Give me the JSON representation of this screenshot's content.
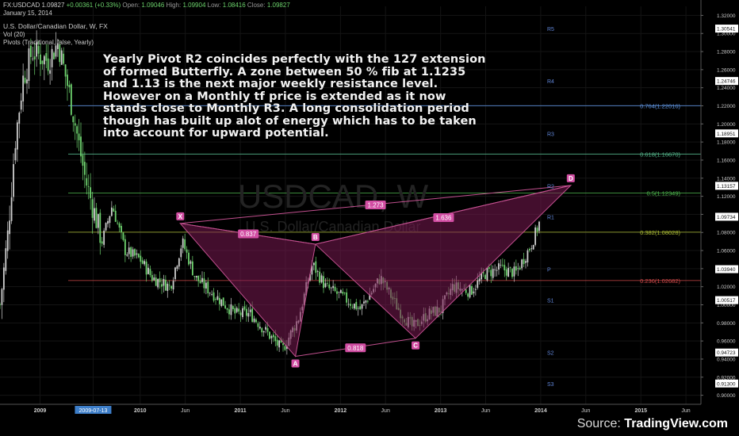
{
  "header": {
    "line1": {
      "symbol": "FX:USDCAD",
      "last": "1.09827",
      "change": "+0.00361 (+0.33%)",
      "open_label": "Open:",
      "open": "1.09046",
      "high_label": "High:",
      "high": "1.09904",
      "low_label": "Low:",
      "low": "1.08416",
      "close_label": "Close:",
      "close": "1.09827"
    },
    "date": "January 15, 2014",
    "pair_name": "U.S. Dollar/Canadian Dollar, W, FX",
    "vol": "Vol (20)",
    "pivots": "Pivots (Traditional, false, Yearly)"
  },
  "annotation": "Yearly Pivot R2 coincides perfectly with the 127 extension of formed Butterfly. A zone between 50 % fib at 1.1235 and 1.13 is the next major weekly resistance level. However on a Monthly tf price is extended as it now stands close to Monthly R3. A long consolidation period though has built up alot of energy which has to be taken into account for upward potential.",
  "watermark": {
    "symbol": "USDCAD",
    "interval": "W",
    "name": "U.S. Dollar/Canadian Dollar"
  },
  "source": {
    "prefix": "Source: ",
    "brand": "TradingView.com"
  },
  "colors": {
    "background": "#000000",
    "candle_up": "#cfcfcf",
    "candle_down": "#6fd36f",
    "pattern_stroke": "#c2508f",
    "pattern_fill": "#7a1a52",
    "pivot_label": "#5f84d6",
    "fib_label": "#9ad09a"
  },
  "chart_data": {
    "type": "candlestick",
    "ylim": [
      0.89,
      1.33
    ],
    "y_ticks": [
      "1.32000",
      "1.30000",
      "1.28000",
      "1.26000",
      "1.24000",
      "1.22000",
      "1.20000",
      "1.18000",
      "1.16000",
      "1.14000",
      "1.12000",
      "1.10000",
      "1.08000",
      "1.06000",
      "1.04000",
      "1.02000",
      "1.00000",
      "0.98000",
      "0.96000",
      "0.94000",
      "0.92000",
      "0.90000"
    ],
    "price_badges": [
      {
        "label": "1.30541",
        "value": 1.30541
      },
      {
        "label": "1.24746",
        "value": 1.24746
      },
      {
        "label": "1.18951",
        "value": 1.18951
      },
      {
        "label": "1.13157",
        "value": 1.13157
      },
      {
        "label": "1.09734",
        "value": 1.09734
      },
      {
        "label": "1.03940",
        "value": 1.0394
      },
      {
        "label": "1.00517",
        "value": 1.00517
      },
      {
        "label": "0.94723",
        "value": 0.94723
      },
      {
        "label": "0.91300",
        "value": 0.913
      }
    ],
    "x_range": [
      2008.6,
      2015.6
    ],
    "x_ticks": [
      {
        "label": "2009",
        "t": 2009.0
      },
      {
        "label": "2009-07-13",
        "t": 2009.53,
        "highlight": true
      },
      {
        "label": "2010",
        "t": 2010.0
      },
      {
        "label": "Jun",
        "t": 2010.45
      },
      {
        "label": "2011",
        "t": 2011.0
      },
      {
        "label": "Jun",
        "t": 2011.45
      },
      {
        "label": "2012",
        "t": 2012.0
      },
      {
        "label": "Jun",
        "t": 2012.45
      },
      {
        "label": "2013",
        "t": 2013.0
      },
      {
        "label": "Jun",
        "t": 2013.45
      },
      {
        "label": "2014",
        "t": 2014.0
      },
      {
        "label": "Jun",
        "t": 2014.45
      },
      {
        "label": "2015",
        "t": 2015.0
      },
      {
        "label": "Jun",
        "t": 2015.45
      }
    ],
    "price_anchors": [
      [
        2008.6,
        1.0
      ],
      [
        2008.68,
        1.08
      ],
      [
        2008.75,
        1.18
      ],
      [
        2008.83,
        1.25
      ],
      [
        2008.92,
        1.28
      ],
      [
        2009.08,
        1.27
      ],
      [
        2009.18,
        1.29
      ],
      [
        2009.3,
        1.23
      ],
      [
        2009.45,
        1.14
      ],
      [
        2009.62,
        1.07
      ],
      [
        2009.72,
        1.11
      ],
      [
        2009.85,
        1.06
      ],
      [
        2010.0,
        1.05
      ],
      [
        2010.12,
        1.03
      ],
      [
        2010.3,
        1.02
      ],
      [
        2010.42,
        1.07
      ],
      [
        2010.55,
        1.03
      ],
      [
        2010.75,
        1.01
      ],
      [
        2010.95,
        0.99
      ],
      [
        2011.1,
        0.99
      ],
      [
        2011.3,
        0.965
      ],
      [
        2011.42,
        0.95
      ],
      [
        2011.58,
        0.985
      ],
      [
        2011.72,
        1.045
      ],
      [
        2011.85,
        1.02
      ],
      [
        2012.0,
        1.01
      ],
      [
        2012.2,
        0.995
      ],
      [
        2012.4,
        1.03
      ],
      [
        2012.58,
        0.995
      ],
      [
        2012.72,
        0.975
      ],
      [
        2012.88,
        0.99
      ],
      [
        2013.0,
        0.995
      ],
      [
        2013.12,
        1.02
      ],
      [
        2013.3,
        1.015
      ],
      [
        2013.45,
        1.035
      ],
      [
        2013.6,
        1.04
      ],
      [
        2013.75,
        1.035
      ],
      [
        2013.9,
        1.065
      ],
      [
        2014.0,
        1.095
      ]
    ],
    "horizontal_lines": [
      {
        "name": "fib-0.764",
        "value": 1.22016,
        "label": "0.764(1.22016)",
        "color": "#5b8fd9"
      },
      {
        "name": "fib-0.618",
        "value": 1.1667,
        "label": "0.618(1.16670)",
        "color": "#54b58a"
      },
      {
        "name": "fib-0.5",
        "value": 1.12349,
        "label": "0.5(1.12349)",
        "color": "#4fb84f"
      },
      {
        "name": "fib-0.382",
        "value": 1.08028,
        "label": "0.382(1.08028)",
        "color": "#a8b832"
      },
      {
        "name": "fib-0.236",
        "value": 1.02682,
        "label": "0.236(1.02682)",
        "color": "#d04a4a"
      }
    ],
    "pivot_labels": [
      {
        "label": "R5",
        "value": 1.30541
      },
      {
        "label": "R4",
        "value": 1.24746
      },
      {
        "label": "R3",
        "value": 1.18951
      },
      {
        "label": "R2",
        "value": 1.13157
      },
      {
        "label": "R1",
        "value": 1.09734
      },
      {
        "label": "P",
        "value": 1.0394
      },
      {
        "label": "S1",
        "value": 1.00517
      },
      {
        "label": "S2",
        "value": 0.94723
      },
      {
        "label": "S3",
        "value": 0.913
      }
    ],
    "pattern_points": [
      {
        "label": "X",
        "t": 2010.4,
        "v": 1.09
      },
      {
        "label": "A",
        "t": 2011.55,
        "v": 0.943
      },
      {
        "label": "B",
        "t": 2011.75,
        "v": 1.067
      },
      {
        "label": "C",
        "t": 2012.75,
        "v": 0.963
      },
      {
        "label": "D",
        "t": 2014.3,
        "v": 1.132
      }
    ],
    "pattern_ratios": [
      {
        "label": "0.837",
        "t": 2011.08,
        "v": 1.078
      },
      {
        "label": "0.818",
        "t": 2012.15,
        "v": 0.952
      },
      {
        "label": "1.273",
        "t": 2012.35,
        "v": 1.11
      },
      {
        "label": "1.636",
        "t": 2013.03,
        "v": 1.096
      }
    ]
  }
}
